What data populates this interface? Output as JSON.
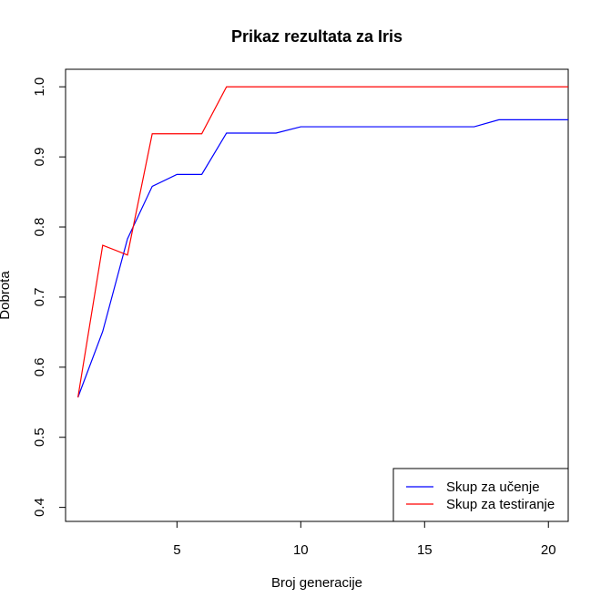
{
  "chart_data": {
    "type": "line",
    "title": "Prikaz rezultata za Iris",
    "xlabel": "Broj generacije",
    "ylabel": "Dobrota",
    "xlim": [
      0.5,
      20.8
    ],
    "ylim": [
      0.38,
      1.025
    ],
    "x_ticks": [
      5,
      10,
      15,
      20
    ],
    "y_ticks": [
      0.4,
      0.5,
      0.6,
      0.7,
      0.8,
      0.9,
      1.0
    ],
    "y_tick_labels": [
      "0.4",
      "0.5",
      "0.6",
      "0.7",
      "0.8",
      "0.9",
      "1.0"
    ],
    "grid": false,
    "legend_position": "bottom-right",
    "x": [
      1,
      2,
      3,
      4,
      5,
      6,
      7,
      8,
      9,
      10,
      11,
      12,
      13,
      14,
      15,
      16,
      17,
      18,
      19,
      20,
      20.8
    ],
    "series": [
      {
        "name": "Skup za učenje",
        "color": "#0000ff",
        "values": [
          0.557,
          0.651,
          0.783,
          0.858,
          0.875,
          0.875,
          0.934,
          0.934,
          0.934,
          0.943,
          0.943,
          0.943,
          0.943,
          0.943,
          0.943,
          0.943,
          0.943,
          0.953,
          0.953,
          0.953,
          0.953
        ]
      },
      {
        "name": "Skup za testiranje",
        "color": "#ff0000",
        "values": [
          0.557,
          0.774,
          0.76,
          0.933,
          0.933,
          0.933,
          1.0,
          1.0,
          1.0,
          1.0,
          1.0,
          1.0,
          1.0,
          1.0,
          1.0,
          1.0,
          1.0,
          1.0,
          1.0,
          1.0,
          1.0
        ]
      }
    ]
  }
}
